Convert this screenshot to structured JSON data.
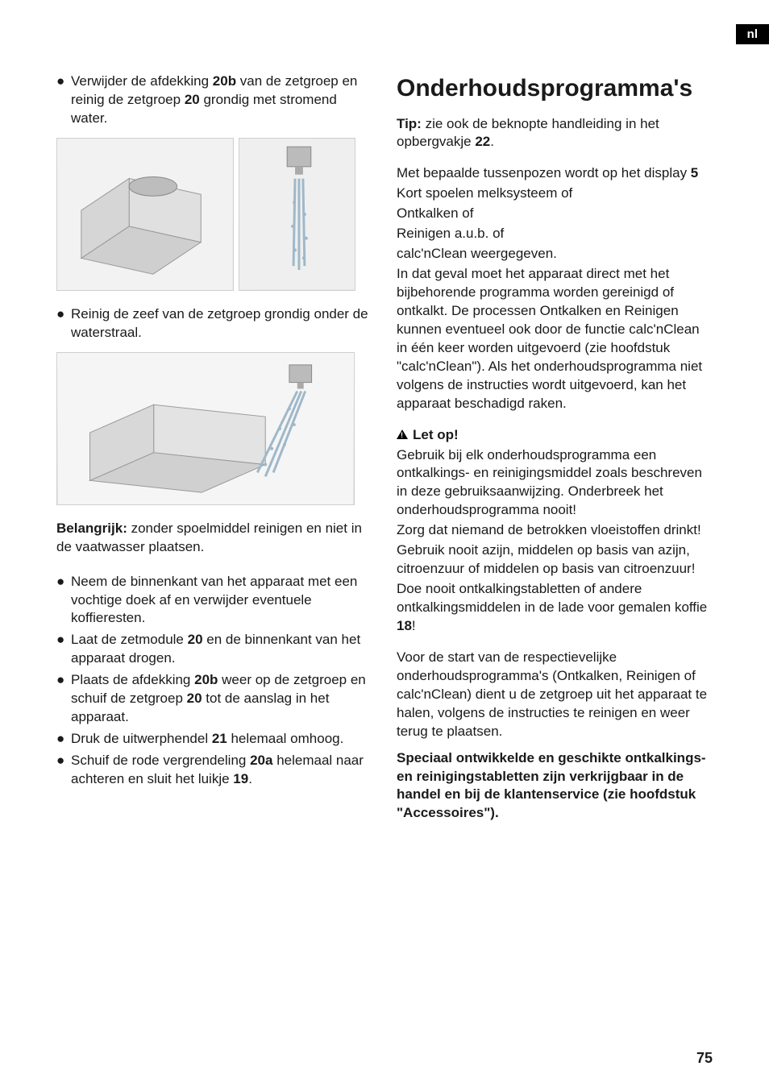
{
  "lang_tag": "nl",
  "page_number": "75",
  "left": {
    "b1": "Verwijder de afdekking 20b van de zetgroep en reinig de zetgroep 20 grondig met stromend water.",
    "b1_html": "Verwijder de afdekking <b>20b</b> van de zetgroep en reinig de zetgroep <b>20</b> grondig met stromend water.",
    "b2": "Reinig de zeef van de zetgroep grondig onder de waterstraal.",
    "important_label": "Belangrijk:",
    "important_text": " zonder spoelmiddel reinigen en niet in de vaatwasser plaatsen.",
    "b3": "Neem de binnenkant van het apparaat met een vochtige doek af en verwijder eventuele koffieresten.",
    "b4_html": "Laat de zetmodule <b>20</b> en de binnenkant van het apparaat drogen.",
    "b5_html": "Plaats de afdekking <b>20b</b> weer op de zetgroep en schuif de zetgroep <b>20</b> tot de aanslag in het apparaat.",
    "b6_html": "Druk de uitwerphendel <b>21</b> helemaal omhoog.",
    "b7_html": "Schuif de rode vergrendeling <b>20a</b> helemaal naar achteren en sluit het luikje <b>19</b>."
  },
  "right": {
    "title": "Onderhoudsprogramma's",
    "tip_label": "Tip:",
    "tip_text_html": " zie ook de beknopte handleiding in het opbergvakje <b>22</b>.",
    "p1_html": "Met bepaalde tussenpozen wordt op het display <b>5</b>",
    "opt1": "Kort spoelen melksysteem of",
    "opt2": "Ontkalken of",
    "opt3": "Reinigen a.u.b. of",
    "opt4": "calc'nClean weergegeven.",
    "p2": "In dat geval moet het apparaat direct met het bijbehorende programma worden gereinigd of ontkalkt. De processen Ontkalken en Reinigen kunnen eventueel ook door de functie calc'nClean in één keer worden uitgevoerd (zie hoofdstuk \"calc'nClean\"). Als het onderhoudsprogramma niet volgens de instructies wordt uitgevoerd, kan het apparaat beschadigd raken.",
    "warn_title": "Let op!",
    "w1": "Gebruik bij elk onderhoudsprogramma een ontkalkings- en reinigingsmiddel zoals beschreven in deze gebruiksaanwijzing. Onderbreek het onderhoudsprogramma nooit!",
    "w2": "Zorg dat niemand de betrokken vloeistoffen drinkt!",
    "w3": "Gebruik nooit azijn, middelen op basis van azijn, citroenzuur of middelen op basis van citroenzuur!",
    "w4_html": "Doe nooit ontkalkingstabletten of andere ontkalkingsmiddelen in de lade voor gemalen koffie <b>18</b>!",
    "p3": "Voor de start van de respectievelijke onderhoudsprogramma's (Ontkalken, Reinigen of calc'nClean) dient u de zetgroep uit het apparaat te halen, volgens de instructies te reinigen en weer terug te plaatsen.",
    "p4": "Speciaal ontwikkelde en geschikte ontkalkings- en reinigingstabletten zijn verkrijgbaar in de handel en bij de klantenservice (zie hoofdstuk \"Accessoires\")."
  }
}
